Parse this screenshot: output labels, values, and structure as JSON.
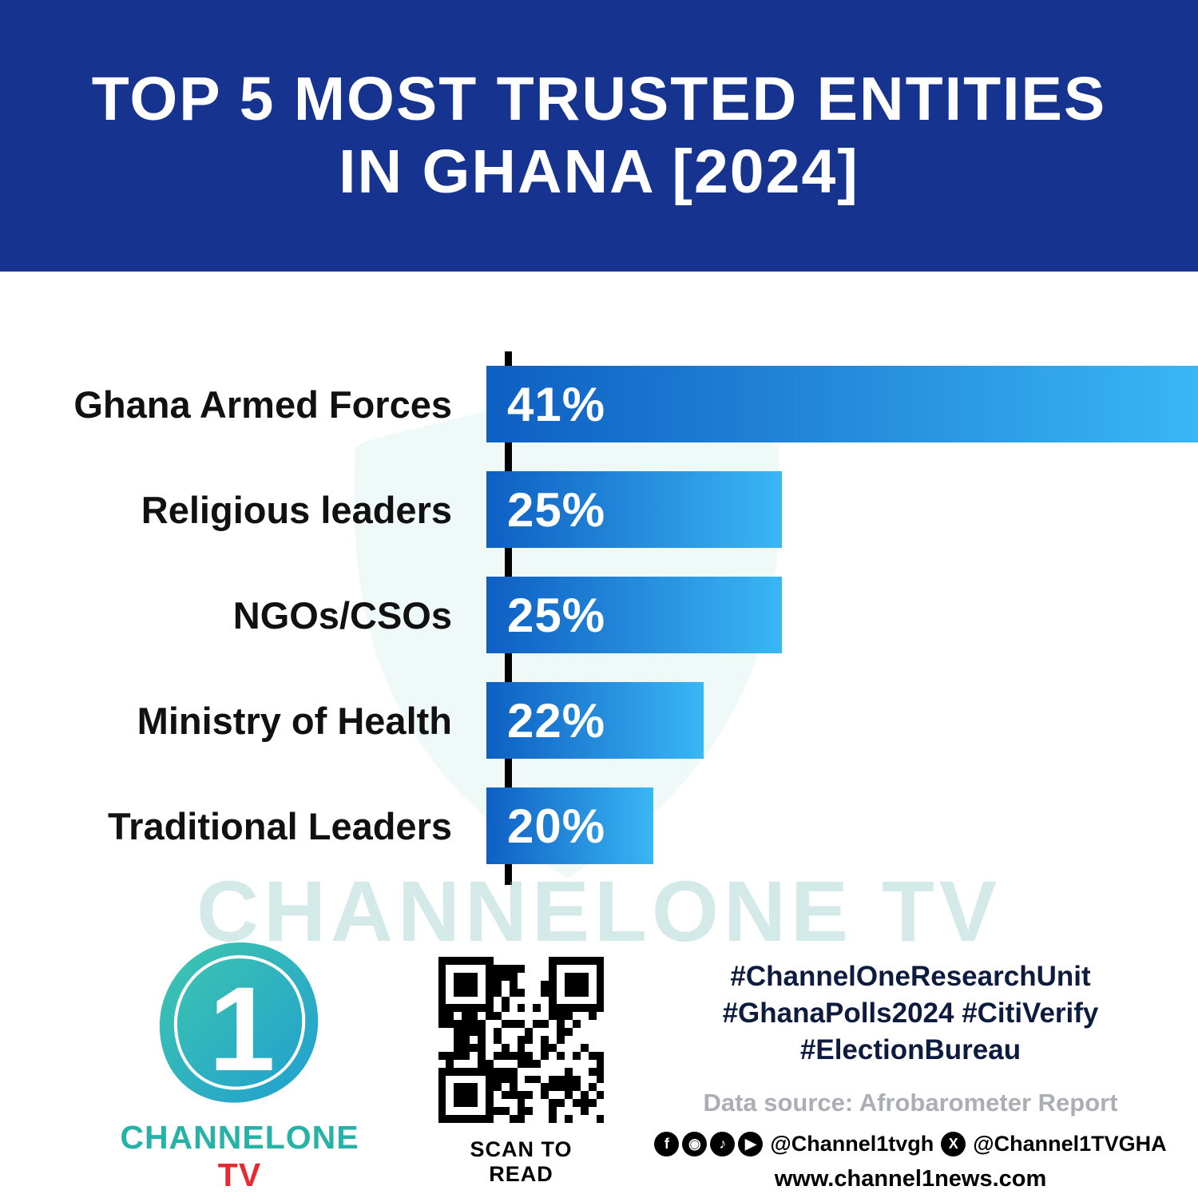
{
  "header": {
    "title_line1": "TOP 5 MOST TRUSTED ENTITIES",
    "title_line2": "IN GHANA [2024]"
  },
  "chart_data": {
    "type": "bar",
    "orientation": "horizontal",
    "title": "Top 5 Most Trusted Entities in Ghana [2024]",
    "categories": [
      "Ghana Armed Forces",
      "Religious leaders",
      "NGOs/CSOs",
      "Ministry of Health",
      "Traditional Leaders"
    ],
    "values": [
      41,
      25,
      25,
      22,
      20
    ],
    "value_labels": [
      "41%",
      "25%",
      "25%",
      "22%",
      "20%"
    ],
    "xlabel": "",
    "ylabel": "",
    "xlim": [
      0,
      41
    ],
    "grid": false,
    "legend": false,
    "bar_color_start": "#0e5fc2",
    "bar_color_end": "#3ab6f5",
    "display_widths_pct": [
      100,
      41.5,
      41.5,
      30.5,
      23.5
    ]
  },
  "watermark": {
    "text": "CHANNELONE TV"
  },
  "footer": {
    "logo": {
      "numeral": "1",
      "brand_main": "CHANNELONE",
      "brand_tv": " TV"
    },
    "qr_caption": "SCAN TO READ",
    "hashtags_line1": "#ChannelOneResearchUnit",
    "hashtags_line2": "#GhanaPolls2024 #CitiVerify",
    "hashtags_line3": "#ElectionBureau",
    "data_source": "Data source: Afrobarometer Report",
    "social_icons": [
      {
        "name": "facebook-icon",
        "glyph": "f"
      },
      {
        "name": "instagram-icon",
        "glyph": "◉"
      },
      {
        "name": "tiktok-icon",
        "glyph": "♪"
      },
      {
        "name": "youtube-icon",
        "glyph": "▶"
      }
    ],
    "x_icon_glyph": "X",
    "social_handle1": "@Channel1tvgh",
    "social_handle2": "@Channel1TVGHA",
    "website": "www.channel1news.com"
  }
}
